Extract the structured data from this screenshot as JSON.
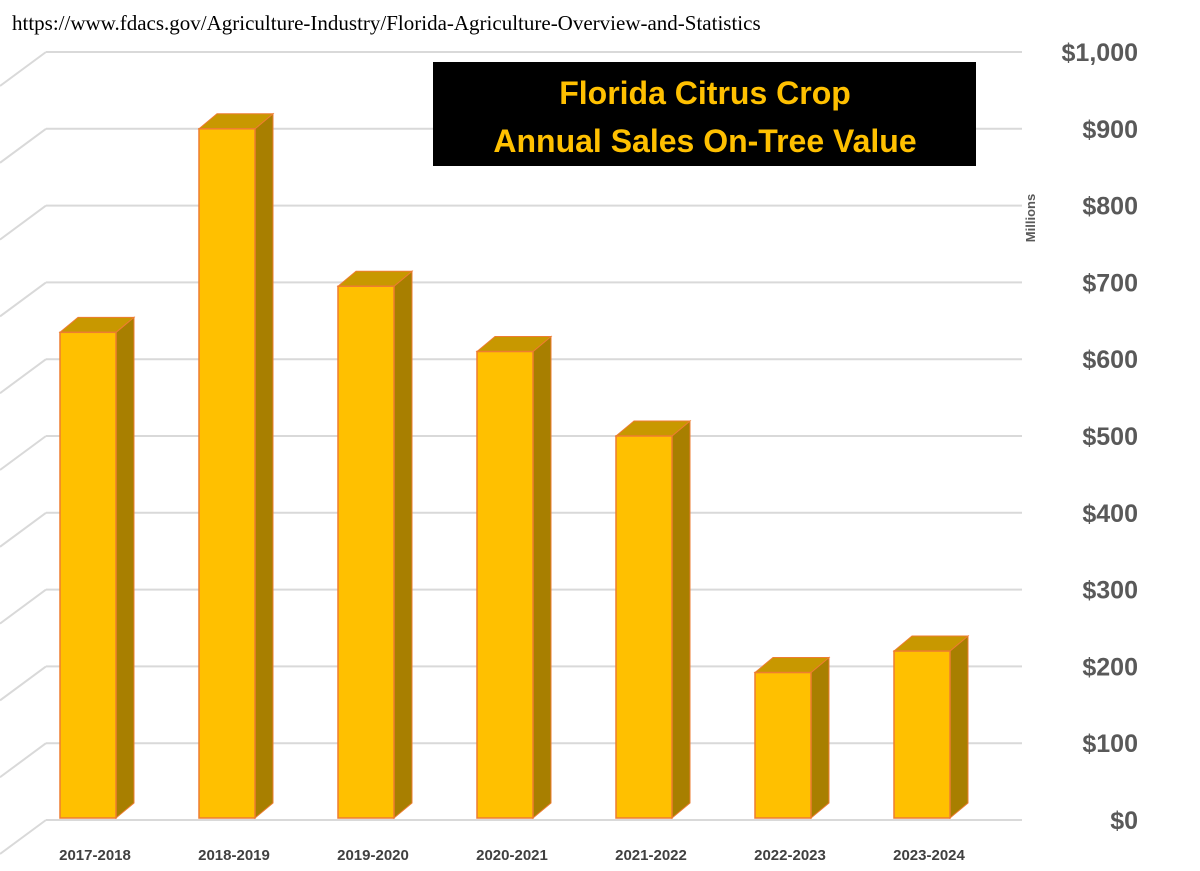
{
  "source_url": "https://www.fdacs.gov/Agriculture-Industry/Florida-Agriculture-Overview-and-Statistics",
  "title_line1": "Florida Citrus Crop",
  "title_line2": "Annual Sales On-Tree Value",
  "colors": {
    "bar_front": "#ffc000",
    "bar_side": "#a87f00",
    "bar_top": "#c89800",
    "bar_edge": "#ed7d31",
    "title_bg": "#000000",
    "title_text": "#ffc000",
    "grid": "#d9d9d9"
  },
  "chart_data": {
    "type": "bar",
    "style": "3d-column",
    "title": "Florida Citrus Crop Annual Sales On-Tree Value",
    "ylabel": "Millions",
    "categories": [
      "2017-2018",
      "2018-2019",
      "2019-2020",
      "2020-2021",
      "2021-2022",
      "2022-2023",
      "2023-2024"
    ],
    "values": [
      635,
      900,
      695,
      610,
      500,
      192,
      220
    ],
    "ylim": [
      0,
      1000
    ],
    "yticks": [
      "$0",
      "$100",
      "$200",
      "$300",
      "$400",
      "$500",
      "$600",
      "$700",
      "$800",
      "$900",
      "$1,000"
    ],
    "grid": true,
    "legend": "none"
  }
}
